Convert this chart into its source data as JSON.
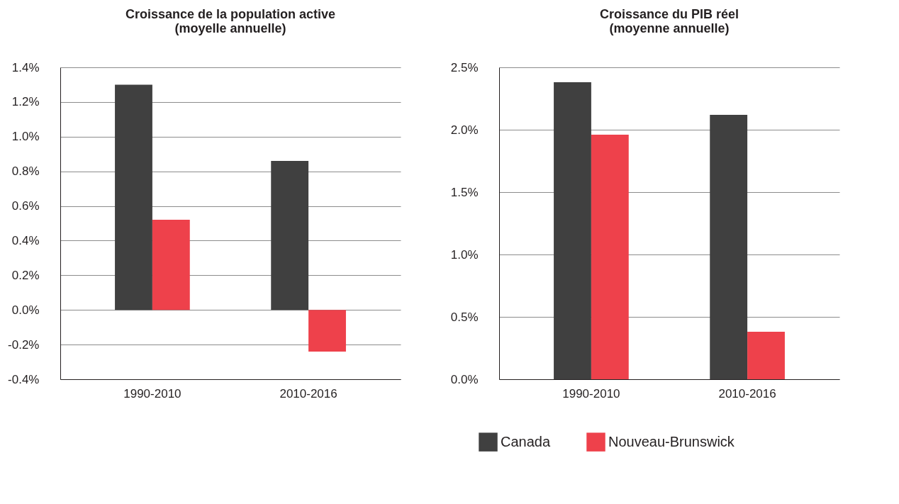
{
  "chart_data": [
    {
      "type": "bar",
      "title": "Croissance de la population active\n(moyelle annuelle)",
      "categories": [
        "1990-2010",
        "2010-2016"
      ],
      "series": [
        {
          "name": "Canada",
          "color": "#404040",
          "values": [
            1.3,
            0.86
          ]
        },
        {
          "name": "Nouveau-Brunswick",
          "color": "#ee414b",
          "values": [
            0.52,
            -0.24
          ]
        }
      ],
      "ylim": [
        -0.4,
        1.4
      ],
      "yticks": [
        {
          "value": -0.4,
          "label": "-0.4%"
        },
        {
          "value": -0.2,
          "label": "-0.2%"
        },
        {
          "value": 0,
          "label": "0.0%"
        },
        {
          "value": 0.2,
          "label": "0.2%"
        },
        {
          "value": 0.4,
          "label": "0.4%"
        },
        {
          "value": 0.6,
          "label": "0.6%"
        },
        {
          "value": 0.8,
          "label": "0.8%"
        },
        {
          "value": 1.0,
          "label": "1.0%"
        },
        {
          "value": 1.2,
          "label": "1.2%"
        },
        {
          "value": 1.4,
          "label": "1.4%"
        }
      ],
      "grid": "y",
      "legend": "bottom"
    },
    {
      "type": "bar",
      "title": "Croissance du PIB réel\n(moyenne annuelle)",
      "categories": [
        "1990-2010",
        "2010-2016"
      ],
      "series": [
        {
          "name": "Canada",
          "color": "#404040",
          "values": [
            2.38,
            2.12
          ]
        },
        {
          "name": "Nouveau-Brunswick",
          "color": "#ee414b",
          "values": [
            1.96,
            0.38
          ]
        }
      ],
      "ylim": [
        0,
        2.5
      ],
      "yticks": [
        {
          "value": 0,
          "label": "0.0%"
        },
        {
          "value": 0.5,
          "label": "0.5%"
        },
        {
          "value": 1.0,
          "label": "1.0%"
        },
        {
          "value": 1.5,
          "label": "1.5%"
        },
        {
          "value": 2.0,
          "label": "2.0%"
        },
        {
          "value": 2.5,
          "label": "2.5%"
        }
      ],
      "grid": "y",
      "legend": "bottom"
    }
  ]
}
